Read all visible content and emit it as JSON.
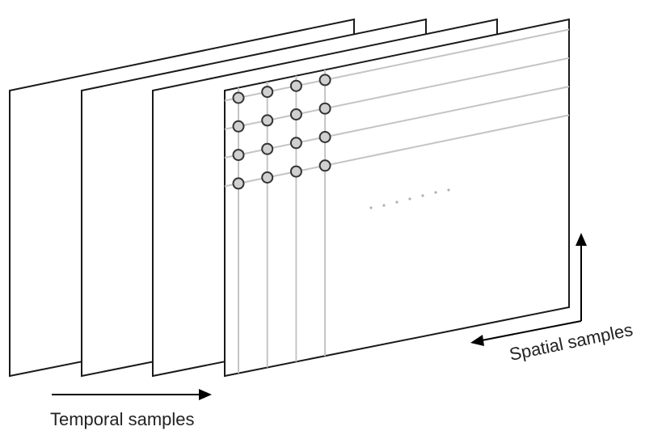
{
  "labels": {
    "temporal": "Temporal samples",
    "spatial": "Spatial samples"
  },
  "frames": {
    "count": 4
  },
  "sample_grid": {
    "rows": 4,
    "columns": 4
  },
  "colors": {
    "frame_stroke": "#1a1a1a",
    "grid_line": "#c4c4c4",
    "sample_fill": "#d0d0d0",
    "arrow": "#000000"
  }
}
